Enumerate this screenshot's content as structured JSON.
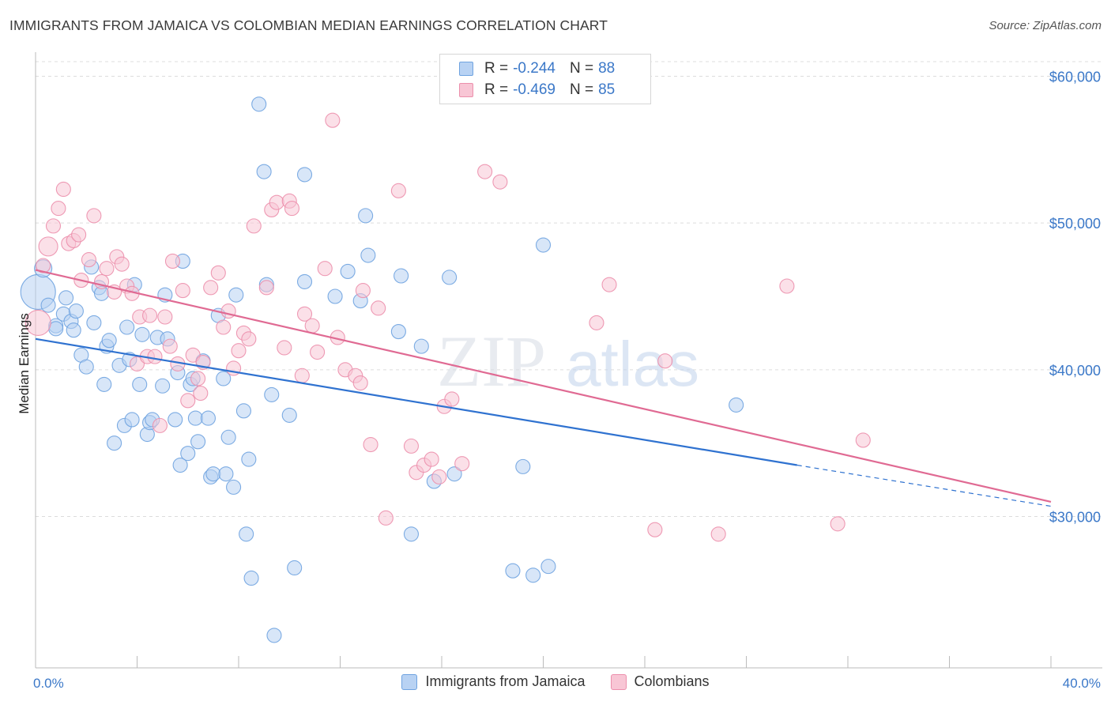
{
  "title": "IMMIGRANTS FROM JAMAICA VS COLOMBIAN MEDIAN EARNINGS CORRELATION CHART",
  "source": "Source: ZipAtlas.com",
  "watermark": {
    "zip": "ZIP",
    "atlas": "atlas"
  },
  "legend_top": [
    {
      "label": "R =",
      "r": "-0.244",
      "n_label": "N =",
      "n": "88",
      "color": "#6fa3e0"
    },
    {
      "label": "R =",
      "r": "-0.469",
      "n_label": "N =",
      "n": "85",
      "color": "#ec8fac"
    }
  ],
  "legend_bottom": [
    {
      "name": "Immigrants from Jamaica",
      "color": "#6fa3e0"
    },
    {
      "name": "Colombians",
      "color": "#ec8fac"
    }
  ],
  "chart_data": {
    "type": "scatter",
    "title": "IMMIGRANTS FROM JAMAICA VS COLOMBIAN MEDIAN EARNINGS CORRELATION CHART",
    "xlabel": "",
    "ylabel": "Median Earnings",
    "xlim": [
      0,
      40
    ],
    "ylim": [
      20000,
      62000
    ],
    "x_tick_labels": [
      "0.0%",
      "40.0%"
    ],
    "y_ticks": [
      30000,
      40000,
      50000,
      60000
    ],
    "y_tick_labels": [
      "$30,000",
      "$40,000",
      "$50,000",
      "$60,000"
    ],
    "grid": true,
    "series": [
      {
        "name": "Immigrants from Jamaica",
        "color": "#6fa3e0",
        "trend": {
          "x0": 0,
          "y0": 42100,
          "x1": 30,
          "y1": 33500,
          "dash_to_x": 40,
          "dash_to_y": 30700
        },
        "points": [
          [
            0.1,
            45300,
            22
          ],
          [
            0.3,
            46900,
            11
          ],
          [
            0.5,
            44400,
            9
          ],
          [
            0.8,
            43000,
            9
          ],
          [
            0.8,
            42800,
            9
          ],
          [
            1.1,
            43800,
            9
          ],
          [
            1.2,
            44900,
            9
          ],
          [
            1.4,
            43300,
            9
          ],
          [
            1.5,
            42700,
            9
          ],
          [
            1.6,
            44000,
            9
          ],
          [
            1.8,
            41000,
            9
          ],
          [
            2.0,
            40200,
            9
          ],
          [
            2.2,
            47000,
            9
          ],
          [
            2.3,
            43200,
            9
          ],
          [
            2.5,
            45600,
            9
          ],
          [
            2.6,
            45200,
            9
          ],
          [
            2.7,
            39000,
            9
          ],
          [
            2.8,
            41600,
            9
          ],
          [
            2.9,
            42000,
            9
          ],
          [
            3.1,
            35000,
            9
          ],
          [
            3.3,
            40300,
            9
          ],
          [
            3.5,
            36200,
            9
          ],
          [
            3.6,
            42900,
            9
          ],
          [
            3.7,
            40700,
            9
          ],
          [
            3.8,
            36600,
            9
          ],
          [
            3.9,
            45800,
            9
          ],
          [
            4.1,
            39000,
            9
          ],
          [
            4.2,
            42400,
            9
          ],
          [
            4.4,
            35600,
            9
          ],
          [
            4.5,
            36400,
            9
          ],
          [
            4.6,
            36600,
            9
          ],
          [
            4.8,
            42200,
            9
          ],
          [
            5.0,
            38900,
            9
          ],
          [
            5.1,
            45100,
            9
          ],
          [
            5.2,
            42100,
            9
          ],
          [
            5.5,
            36600,
            9
          ],
          [
            5.6,
            39800,
            9
          ],
          [
            5.7,
            33500,
            9
          ],
          [
            5.8,
            47400,
            9
          ],
          [
            6.0,
            34300,
            9
          ],
          [
            6.1,
            39000,
            9
          ],
          [
            6.2,
            39400,
            9
          ],
          [
            6.3,
            36700,
            9
          ],
          [
            6.4,
            35100,
            9
          ],
          [
            6.6,
            40600,
            9
          ],
          [
            6.8,
            36700,
            9
          ],
          [
            6.9,
            32700,
            9
          ],
          [
            7.0,
            32900,
            9
          ],
          [
            7.2,
            43700,
            9
          ],
          [
            7.4,
            39400,
            9
          ],
          [
            7.5,
            32900,
            9
          ],
          [
            7.6,
            35400,
            9
          ],
          [
            7.8,
            32000,
            9
          ],
          [
            7.9,
            45100,
            9
          ],
          [
            8.2,
            37200,
            9
          ],
          [
            8.3,
            28800,
            9
          ],
          [
            8.4,
            33900,
            9
          ],
          [
            8.5,
            25800,
            9
          ],
          [
            8.8,
            58100,
            9
          ],
          [
            9.0,
            53500,
            9
          ],
          [
            9.1,
            45800,
            9
          ],
          [
            9.3,
            38300,
            9
          ],
          [
            9.4,
            21900,
            9
          ],
          [
            10.0,
            36900,
            9
          ],
          [
            10.2,
            26500,
            9
          ],
          [
            10.6,
            53300,
            9
          ],
          [
            10.6,
            46000,
            9
          ],
          [
            11.8,
            45000,
            9
          ],
          [
            12.3,
            46700,
            9
          ],
          [
            12.8,
            44700,
            9
          ],
          [
            13.0,
            50500,
            9
          ],
          [
            13.1,
            47800,
            9
          ],
          [
            14.3,
            42600,
            9
          ],
          [
            14.4,
            46400,
            9
          ],
          [
            14.8,
            28800,
            9
          ],
          [
            15.2,
            41600,
            9
          ],
          [
            15.7,
            32400,
            9
          ],
          [
            16.3,
            46300,
            9
          ],
          [
            16.5,
            32900,
            9
          ],
          [
            18.8,
            26300,
            9
          ],
          [
            19.2,
            33400,
            9
          ],
          [
            19.6,
            26000,
            9
          ],
          [
            20.2,
            26600,
            9
          ],
          [
            20.0,
            48500,
            9
          ],
          [
            27.6,
            37600,
            9
          ]
        ]
      },
      {
        "name": "Colombians",
        "color": "#ec8fac",
        "trend": {
          "x0": 0,
          "y0": 46800,
          "x1": 40,
          "y1": 31000
        },
        "points": [
          [
            0.1,
            43200,
            16
          ],
          [
            0.3,
            47100,
            9
          ],
          [
            0.5,
            48400,
            12
          ],
          [
            0.7,
            49800,
            9
          ],
          [
            0.9,
            51000,
            9
          ],
          [
            1.1,
            52300,
            9
          ],
          [
            1.3,
            48600,
            9
          ],
          [
            1.5,
            48800,
            9
          ],
          [
            1.7,
            49200,
            9
          ],
          [
            1.8,
            46100,
            9
          ],
          [
            2.1,
            47500,
            9
          ],
          [
            2.3,
            50500,
            9
          ],
          [
            2.6,
            46000,
            9
          ],
          [
            2.8,
            46900,
            9
          ],
          [
            3.1,
            45300,
            9
          ],
          [
            3.2,
            47700,
            9
          ],
          [
            3.4,
            47200,
            9
          ],
          [
            3.6,
            45700,
            9
          ],
          [
            3.8,
            45200,
            9
          ],
          [
            4.0,
            40400,
            9
          ],
          [
            4.1,
            43600,
            9
          ],
          [
            4.4,
            40900,
            9
          ],
          [
            4.5,
            43700,
            9
          ],
          [
            4.7,
            40900,
            9
          ],
          [
            4.9,
            36200,
            9
          ],
          [
            5.1,
            43600,
            9
          ],
          [
            5.3,
            41600,
            9
          ],
          [
            5.4,
            47400,
            9
          ],
          [
            5.6,
            40400,
            9
          ],
          [
            5.8,
            45400,
            9
          ],
          [
            6.0,
            37900,
            9
          ],
          [
            6.2,
            41000,
            9
          ],
          [
            6.4,
            39400,
            9
          ],
          [
            6.5,
            38400,
            9
          ],
          [
            6.6,
            40500,
            9
          ],
          [
            6.9,
            45600,
            9
          ],
          [
            7.2,
            46600,
            9
          ],
          [
            7.4,
            42900,
            9
          ],
          [
            7.6,
            44000,
            9
          ],
          [
            7.8,
            40100,
            9
          ],
          [
            8.0,
            41300,
            9
          ],
          [
            8.2,
            42500,
            9
          ],
          [
            8.4,
            42100,
            9
          ],
          [
            8.6,
            49800,
            9
          ],
          [
            9.1,
            45600,
            9
          ],
          [
            9.3,
            50900,
            9
          ],
          [
            9.5,
            51400,
            9
          ],
          [
            9.8,
            41500,
            9
          ],
          [
            10.0,
            51500,
            9
          ],
          [
            10.1,
            51000,
            9
          ],
          [
            10.5,
            39600,
            9
          ],
          [
            10.6,
            43800,
            9
          ],
          [
            10.9,
            43000,
            9
          ],
          [
            11.1,
            41200,
            9
          ],
          [
            11.4,
            46900,
            9
          ],
          [
            11.7,
            57000,
            9
          ],
          [
            11.9,
            42200,
            9
          ],
          [
            12.2,
            40000,
            9
          ],
          [
            12.6,
            39600,
            9
          ],
          [
            12.8,
            39100,
            9
          ],
          [
            12.9,
            45400,
            9
          ],
          [
            13.2,
            34900,
            9
          ],
          [
            13.5,
            44200,
            9
          ],
          [
            13.8,
            29900,
            9
          ],
          [
            14.3,
            52200,
            9
          ],
          [
            14.8,
            34800,
            9
          ],
          [
            15.0,
            33000,
            9
          ],
          [
            15.3,
            33500,
            9
          ],
          [
            15.6,
            33900,
            9
          ],
          [
            15.9,
            32700,
            9
          ],
          [
            16.1,
            37500,
            9
          ],
          [
            16.4,
            38000,
            9
          ],
          [
            16.8,
            33600,
            9
          ],
          [
            17.7,
            53500,
            9
          ],
          [
            18.3,
            52800,
            9
          ],
          [
            22.1,
            43200,
            9
          ],
          [
            22.6,
            45800,
            9
          ],
          [
            24.4,
            29100,
            9
          ],
          [
            24.8,
            40600,
            9
          ],
          [
            26.9,
            28800,
            9
          ],
          [
            29.6,
            45700,
            9
          ],
          [
            31.6,
            29500,
            9
          ],
          [
            32.6,
            35200,
            9
          ]
        ]
      }
    ]
  }
}
